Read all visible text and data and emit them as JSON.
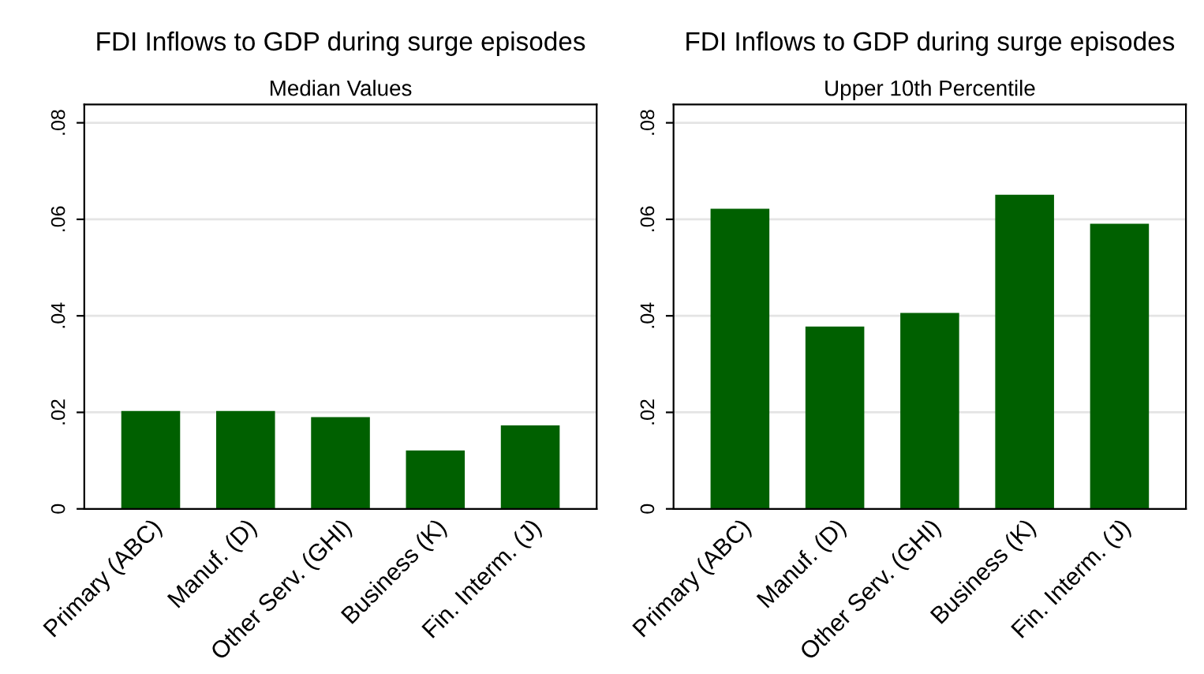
{
  "chart_data": [
    {
      "type": "bar",
      "title": "FDI Inflows to GDP during surge episodes",
      "subtitle": "Median Values",
      "categories": [
        "Primary (ABC)",
        "Manuf. (D)",
        "Other Serv. (GHI)",
        "Business (K)",
        "Fin. Interm. (J)"
      ],
      "values": [
        0.0203,
        0.0203,
        0.019,
        0.0121,
        0.0173
      ],
      "color": "#006000",
      "ylim": [
        0,
        0.0838
      ],
      "yticks": [
        {
          "value": 0,
          "label": "0"
        },
        {
          "value": 0.02,
          "label": ".02"
        },
        {
          "value": 0.04,
          "label": ".04"
        },
        {
          "value": 0.06,
          "label": ".06"
        },
        {
          "value": 0.08,
          "label": ".08"
        }
      ],
      "grid": "y"
    },
    {
      "type": "bar",
      "title": "FDI Inflows to GDP during surge episodes",
      "subtitle": "Upper 10th Percentile",
      "categories": [
        "Primary (ABC)",
        "Manuf. (D)",
        "Other Serv. (GHI)",
        "Business (K)",
        "Fin. Interm. (J)"
      ],
      "values": [
        0.0622,
        0.0378,
        0.0406,
        0.0651,
        0.0591
      ],
      "color": "#006000",
      "ylim": [
        0,
        0.0838
      ],
      "yticks": [
        {
          "value": 0,
          "label": "0"
        },
        {
          "value": 0.02,
          "label": ".02"
        },
        {
          "value": 0.04,
          "label": ".04"
        },
        {
          "value": 0.06,
          "label": ".06"
        },
        {
          "value": 0.08,
          "label": ".08"
        }
      ],
      "grid": "y"
    }
  ]
}
